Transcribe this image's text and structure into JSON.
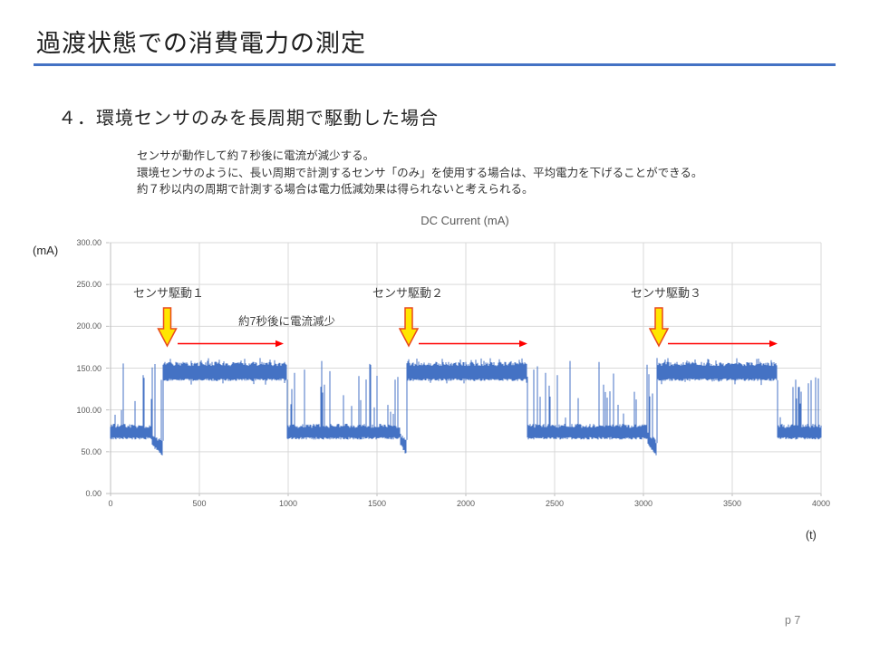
{
  "slide": {
    "title": "過渡状態での消費電力の測定",
    "section_heading": "４．環境センサのみを長周期で駆動した場合",
    "body_lines": [
      "センサが動作して約７秒後に電流が減少する。",
      "環境センサのように、長い周期で計測するセンサ「のみ」を使用する場合は、平均電力を下げることができる。",
      "約７秒以内の周期で計測する場合は電力低減効果は得られないと考えられる。"
    ],
    "page_number": "p 7"
  },
  "colors": {
    "accent_blue": "#4472C4",
    "series_blue": "#4472C4",
    "grid": "#D9D9D9",
    "axis": "#BFBFBF",
    "arrow_yellow": "#FFE600",
    "arrow_yellow_outline": "#E8491D",
    "arrow_red": "#FF0000",
    "tick_text_gray": "#595959",
    "page_gray": "#808080"
  },
  "chart_data": {
    "type": "line",
    "title": "DC Current (mA)",
    "y_axis_label": "(mA)",
    "x_axis_label": "(t)",
    "xlim": [
      0,
      4000
    ],
    "ylim": [
      0,
      300
    ],
    "grid": true,
    "x_ticks": [
      "0",
      "500",
      "1000",
      "1500",
      "2000",
      "2500",
      "3000",
      "3500",
      "4000"
    ],
    "y_ticks": [
      "300.00",
      "250.00",
      "200.00",
      "150.00",
      "100.00",
      "50.00",
      "0.00"
    ],
    "series": [
      {
        "name": "DC Current",
        "pattern_segments": [
          {
            "type": "low",
            "start": 0,
            "end": 230
          },
          {
            "type": "dip",
            "start": 230,
            "end": 291
          },
          {
            "type": "high",
            "start": 291,
            "end": 990
          },
          {
            "type": "low",
            "start": 990,
            "end": 1630
          },
          {
            "type": "dip",
            "start": 1630,
            "end": 1668
          },
          {
            "type": "high",
            "start": 1668,
            "end": 2342
          },
          {
            "type": "low",
            "start": 2342,
            "end": 3025
          },
          {
            "type": "dip",
            "start": 3025,
            "end": 3076
          },
          {
            "type": "high",
            "start": 3076,
            "end": 3755
          },
          {
            "type": "low",
            "start": 3755,
            "end": 4000
          }
        ],
        "levels_mA": {
          "low": {
            "band": [
              66,
              81
            ],
            "spike_range": [
              90,
              160
            ],
            "spike_rate": 0.15
          },
          "dip": {
            "band": [
              46,
              62
            ],
            "spike_range": [
              90,
              158
            ],
            "spike_rate": 0.12
          },
          "high": {
            "band": [
              136,
              155
            ],
            "spike_range": [
              156,
              162
            ],
            "spike_rate": 0.12
          }
        }
      }
    ],
    "annotations": {
      "drive_labels": [
        {
          "text": "センサ駆動１",
          "x": 147,
          "y": 313
        },
        {
          "text": "センサ駆動２",
          "x": 411,
          "y": 313
        },
        {
          "text": "センサ駆動３",
          "x": 696,
          "y": 313
        }
      ],
      "note": {
        "text": "約7秒後に電流減少",
        "x": 263,
        "y": 344
      },
      "down_arrows_x": [
        184.5,
        451,
        727
      ],
      "decrease_arrows": [
        {
          "x1": 196,
          "x2": 313
        },
        {
          "x1": 462,
          "x2": 582
        },
        {
          "x1": 737,
          "x2": 858
        }
      ]
    }
  }
}
